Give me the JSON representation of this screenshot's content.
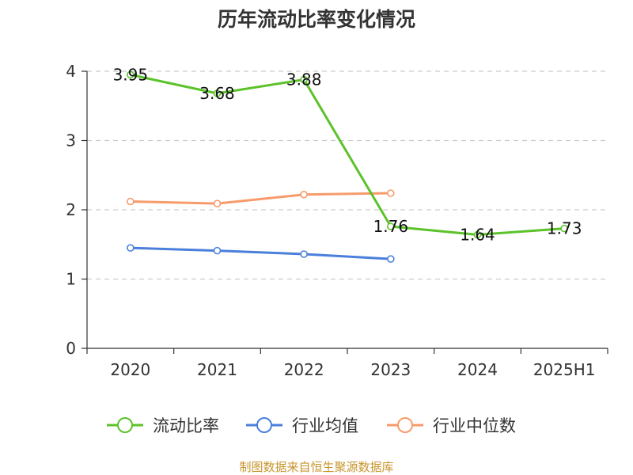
{
  "chart_data": {
    "type": "line",
    "title": "历年流动比率变化情况",
    "categories": [
      "2020",
      "2021",
      "2022",
      "2023",
      "2024",
      "2025H1"
    ],
    "ylim": [
      0,
      4
    ],
    "yticks": [
      0,
      1,
      2,
      3,
      4
    ],
    "grid": true,
    "legend_position": "bottom",
    "series": [
      {
        "name": "流动比率",
        "color": "#5cc22a",
        "values": [
          3.95,
          3.68,
          3.88,
          1.76,
          1.64,
          1.73
        ],
        "labels": [
          "3.95",
          "3.68",
          "3.88",
          "1.76",
          "1.64",
          "1.73"
        ]
      },
      {
        "name": "行业均值",
        "color": "#4a7fdb",
        "values": [
          1.45,
          1.41,
          1.36,
          1.29,
          null,
          null
        ]
      },
      {
        "name": "行业中位数",
        "color": "#f79b6a",
        "values": [
          2.12,
          2.09,
          2.22,
          2.24,
          null,
          null
        ]
      }
    ]
  },
  "footer": {
    "source": "制图数据来自恒生聚源数据库"
  }
}
